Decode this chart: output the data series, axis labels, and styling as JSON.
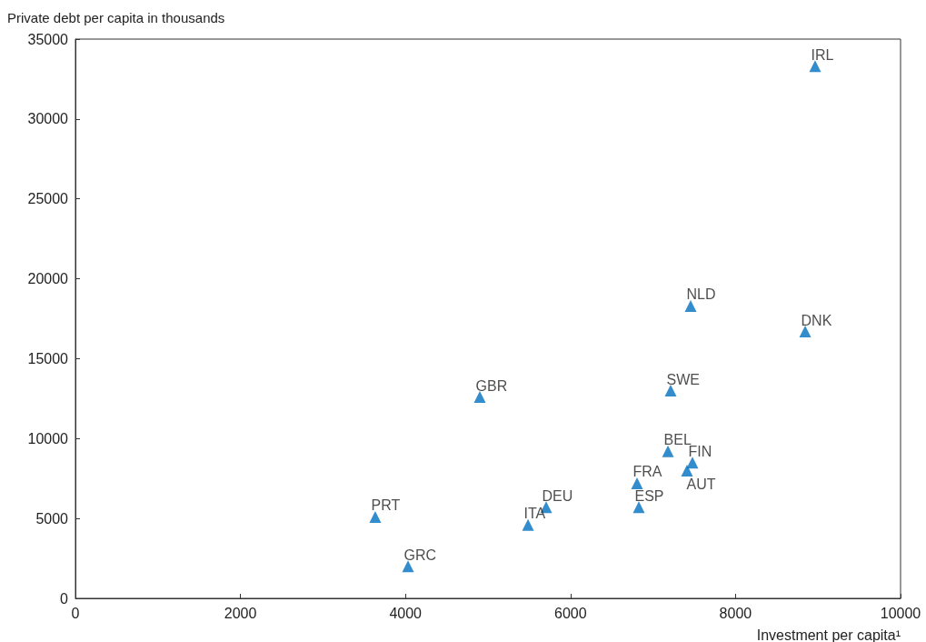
{
  "chart_data": {
    "type": "scatter",
    "xlabel": "Investment per capita¹",
    "ylabel": "Private debt per capita in thousands",
    "x": [
      8965,
      7456,
      8844,
      7214,
      4901,
      7181,
      7478,
      7412,
      6806,
      6828,
      5705,
      5485,
      3634,
      4031
    ],
    "values": [
      33300,
      18300,
      16700,
      13000,
      12600,
      9200,
      8500,
      8000,
      7200,
      5700,
      5700,
      4600,
      5100,
      2000
    ],
    "value_labels": [
      "IRL",
      "NLD",
      "DNK",
      "SWE",
      "GBR",
      "BEL",
      "FIN",
      "AUT",
      "FRA",
      "ESP",
      "DEU",
      "ITA",
      "PRT",
      "GRC"
    ],
    "color": "#0070c0",
    "marker": "triangle",
    "xlim": [
      0,
      10000
    ],
    "xticks": [
      0,
      2000,
      4000,
      6000,
      8000,
      10000
    ],
    "ylim": [
      0,
      35000
    ],
    "yticks": [
      0,
      5000,
      10000,
      15000,
      20000,
      25000,
      30000,
      35000
    ],
    "grid": false
  }
}
